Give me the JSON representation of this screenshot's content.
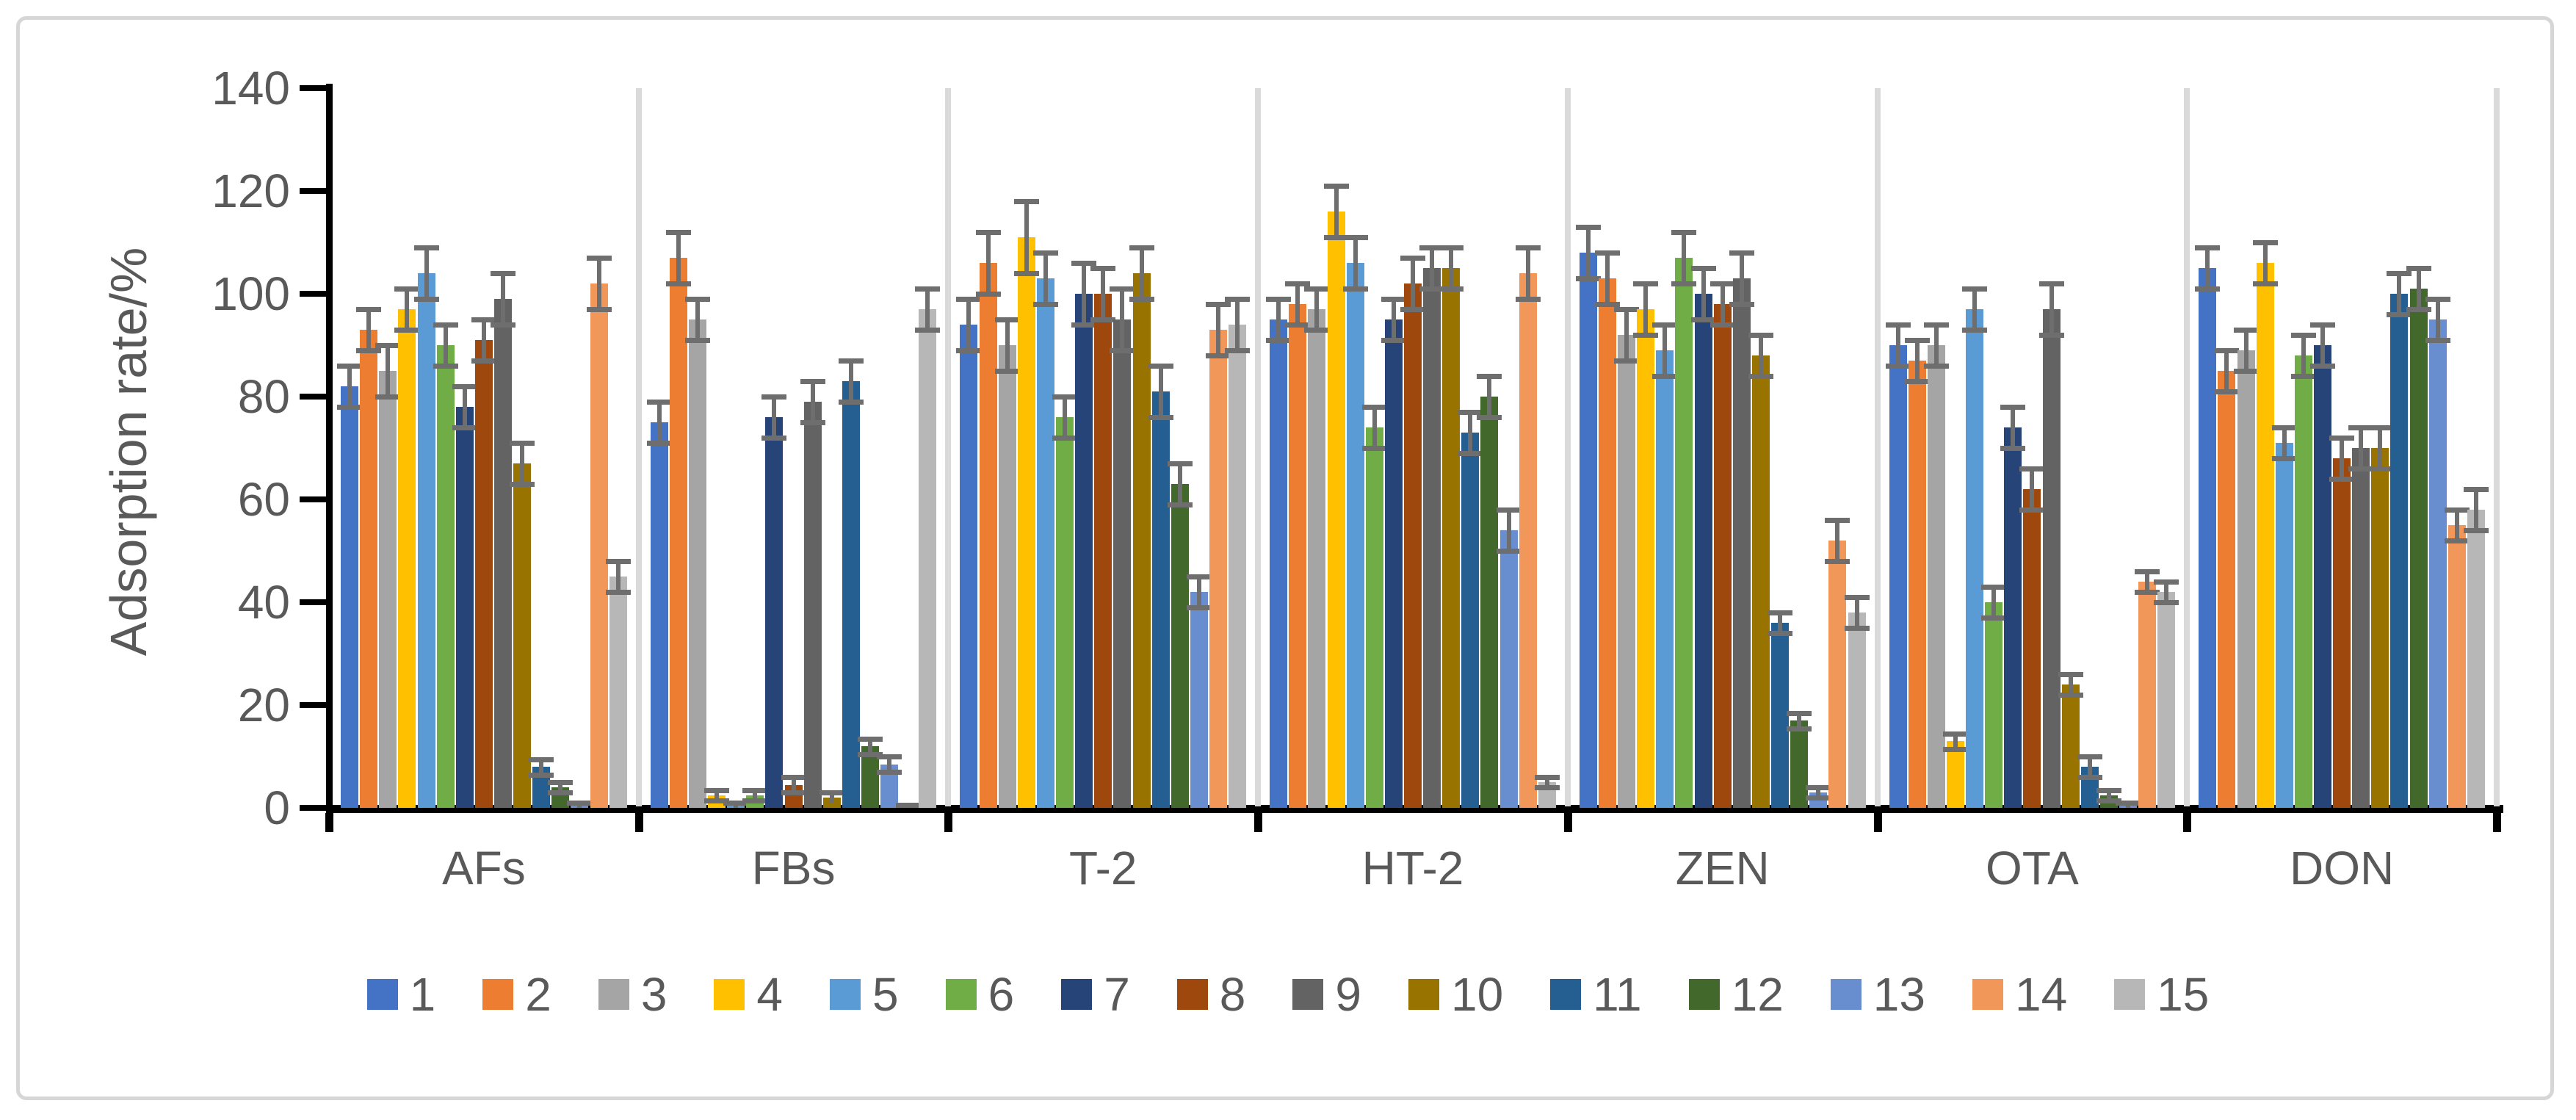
{
  "figure": {
    "background": "#ffffff",
    "border_color": "#d6d6d6",
    "axis_color": "#000000",
    "text_color": "#595959",
    "separator_color": "#dadada",
    "error_bar_color": "#6e6e6e"
  },
  "chart_data": {
    "type": "bar",
    "title": "",
    "xlabel": "",
    "ylabel": "Adsorption rate/%",
    "ylim": [
      0,
      140
    ],
    "yticks": [
      0,
      20,
      40,
      60,
      80,
      100,
      120,
      140
    ],
    "grid": false,
    "error_bars": true,
    "legend_position": "bottom",
    "categories": [
      "AFs",
      "FBs",
      "T-2",
      "HT-2",
      "ZEN",
      "OTA",
      "DON"
    ],
    "series": [
      {
        "name": "1",
        "color": "#4472C4",
        "values": [
          82,
          75,
          94,
          95,
          108,
          90,
          105
        ],
        "errors": [
          4,
          4,
          5,
          4,
          5,
          4,
          4
        ]
      },
      {
        "name": "2",
        "color": "#ED7D31",
        "values": [
          93,
          107,
          106,
          98,
          103,
          87,
          85
        ],
        "errors": [
          4,
          5,
          6,
          4,
          5,
          4,
          4
        ]
      },
      {
        "name": "3",
        "color": "#A5A5A5",
        "values": [
          85,
          95,
          90,
          97,
          92,
          90,
          89
        ],
        "errors": [
          5,
          4,
          5,
          4,
          5,
          4,
          4
        ]
      },
      {
        "name": "4",
        "color": "#FFC000",
        "values": [
          97,
          2.5,
          111,
          116,
          97,
          13,
          106
        ],
        "errors": [
          4,
          1,
          7,
          5,
          5,
          1.5,
          4
        ]
      },
      {
        "name": "5",
        "color": "#5B9BD5",
        "values": [
          104,
          0.5,
          103,
          106,
          89,
          97,
          71
        ],
        "errors": [
          5,
          0.5,
          5,
          5,
          5,
          4,
          3
        ]
      },
      {
        "name": "6",
        "color": "#70AD47",
        "values": [
          90,
          2.5,
          76,
          74,
          107,
          40,
          88
        ],
        "errors": [
          4,
          1,
          4,
          4,
          5,
          3,
          4
        ]
      },
      {
        "name": "7",
        "color": "#264478",
        "values": [
          78,
          76,
          100,
          95,
          100,
          74,
          90
        ],
        "errors": [
          4,
          4,
          6,
          4,
          5,
          4,
          4
        ]
      },
      {
        "name": "8",
        "color": "#9E480E",
        "values": [
          91,
          4.5,
          100,
          102,
          98,
          62,
          68
        ],
        "errors": [
          4,
          1.5,
          5,
          5,
          4,
          4,
          4
        ]
      },
      {
        "name": "9",
        "color": "#636363",
        "values": [
          99,
          79,
          95,
          105,
          103,
          97,
          70
        ],
        "errors": [
          5,
          4,
          6,
          4,
          5,
          5,
          4
        ]
      },
      {
        "name": "10",
        "color": "#997300",
        "values": [
          67,
          2,
          104,
          105,
          88,
          24,
          70
        ],
        "errors": [
          4,
          1,
          5,
          4,
          4,
          2,
          4
        ]
      },
      {
        "name": "11",
        "color": "#255E91",
        "values": [
          8,
          83,
          81,
          73,
          36,
          8,
          100
        ],
        "errors": [
          1.5,
          4,
          5,
          4,
          2,
          2,
          4
        ]
      },
      {
        "name": "12",
        "color": "#43682B",
        "values": [
          4,
          12,
          63,
          80,
          17,
          2.5,
          101
        ],
        "errors": [
          1,
          1.5,
          4,
          4,
          1.5,
          1,
          4
        ]
      },
      {
        "name": "13",
        "color": "#698ED0",
        "values": [
          0.5,
          8.5,
          42,
          54,
          3,
          0.5,
          95
        ],
        "errors": [
          0.5,
          1.5,
          3,
          4,
          1,
          0.5,
          4
        ]
      },
      {
        "name": "14",
        "color": "#F1975A",
        "values": [
          102,
          0.3,
          93,
          104,
          52,
          44,
          55
        ],
        "errors": [
          5,
          0.3,
          5,
          5,
          4,
          2,
          3
        ]
      },
      {
        "name": "15",
        "color": "#B7B7B7",
        "values": [
          45,
          97,
          94,
          5,
          38,
          42,
          58
        ],
        "errors": [
          3,
          4,
          5,
          1,
          3,
          2,
          4
        ]
      }
    ]
  }
}
